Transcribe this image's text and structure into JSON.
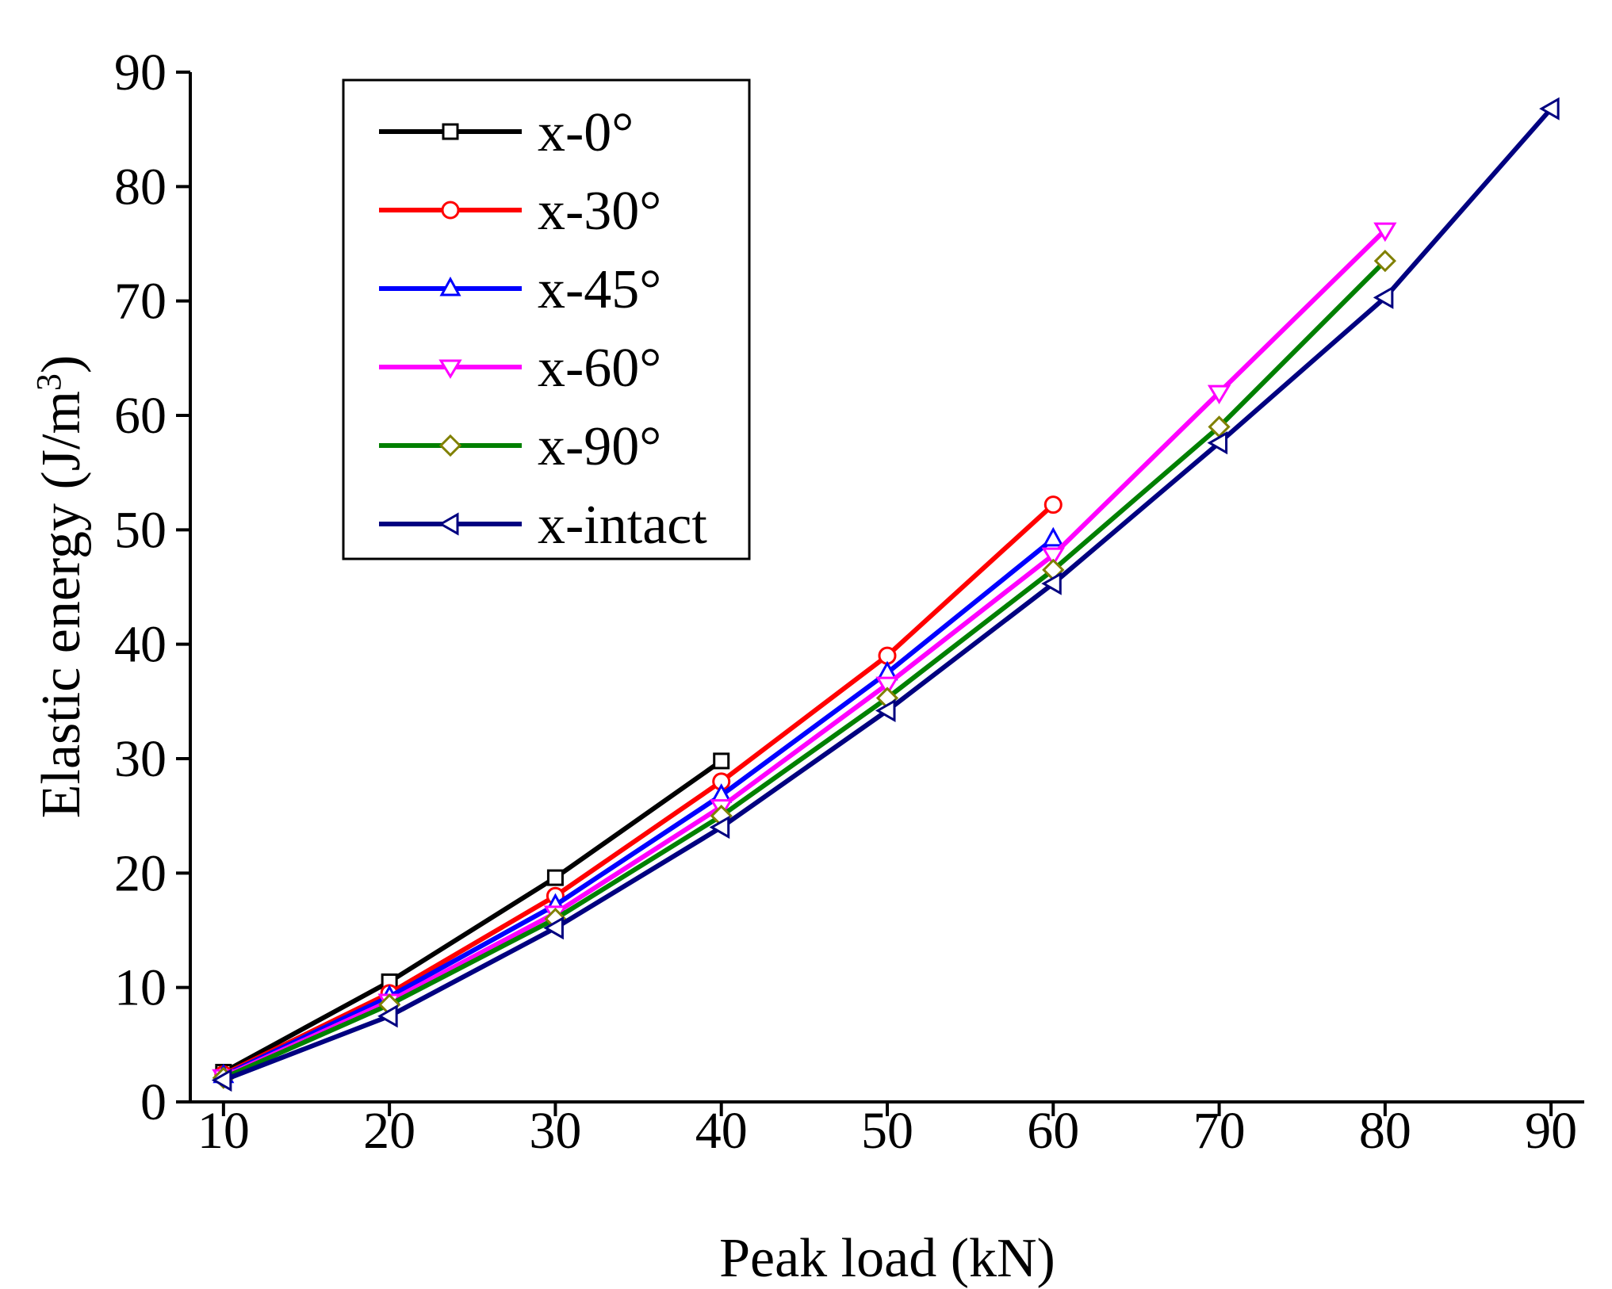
{
  "chart_data": {
    "type": "line",
    "title": "",
    "xlabel": "Peak load (kN)",
    "ylabel_main": "Elastic energy (J/m",
    "ylabel_sup": "3",
    "ylabel_close": ")",
    "xlim": [
      8,
      92
    ],
    "ylim": [
      0,
      90
    ],
    "xticks": [
      10,
      20,
      30,
      40,
      50,
      60,
      70,
      80,
      90
    ],
    "yticks": [
      0,
      10,
      20,
      30,
      40,
      50,
      60,
      70,
      80,
      90
    ],
    "legend_position": "top-left",
    "series": [
      {
        "name": "x-0°",
        "color": "#000000",
        "marker": "square",
        "x": [
          10,
          20,
          30,
          40
        ],
        "y": [
          2.6,
          10.5,
          19.6,
          29.8
        ]
      },
      {
        "name": "x-30°",
        "color": "#ff0000",
        "marker": "circle",
        "x": [
          10,
          20,
          30,
          40,
          50,
          60
        ],
        "y": [
          2.4,
          9.5,
          18.0,
          28.0,
          39.0,
          52.2
        ]
      },
      {
        "name": "x-45°",
        "color": "#0000ff",
        "marker": "triangle-up",
        "x": [
          10,
          20,
          30,
          40,
          50,
          60
        ],
        "y": [
          2.3,
          9.2,
          17.2,
          26.8,
          37.5,
          49.2
        ]
      },
      {
        "name": "x-60°",
        "color": "#ff00ff",
        "marker": "triangle-down",
        "x": [
          10,
          20,
          30,
          40,
          50,
          60,
          70,
          80
        ],
        "y": [
          2.2,
          8.8,
          16.5,
          25.8,
          36.5,
          47.8,
          62.0,
          76.2
        ]
      },
      {
        "name": "x-90°",
        "color": "#008000",
        "marker": "diamond",
        "x": [
          10,
          20,
          30,
          40,
          50,
          60,
          70,
          80
        ],
        "y": [
          2.1,
          8.5,
          16.0,
          25.0,
          35.3,
          46.5,
          59.0,
          73.5
        ]
      },
      {
        "name": "x-intact",
        "color": "#000080",
        "marker": "triangle-left",
        "x": [
          10,
          20,
          30,
          40,
          50,
          60,
          70,
          80,
          90
        ],
        "y": [
          1.9,
          7.5,
          15.2,
          24.0,
          34.2,
          45.3,
          57.6,
          70.3,
          86.8
        ]
      }
    ]
  },
  "style": {
    "axis_color": "#000000",
    "marker_fill": "#ffffff",
    "marker_edge": {
      "x-90°": "#808000"
    }
  }
}
